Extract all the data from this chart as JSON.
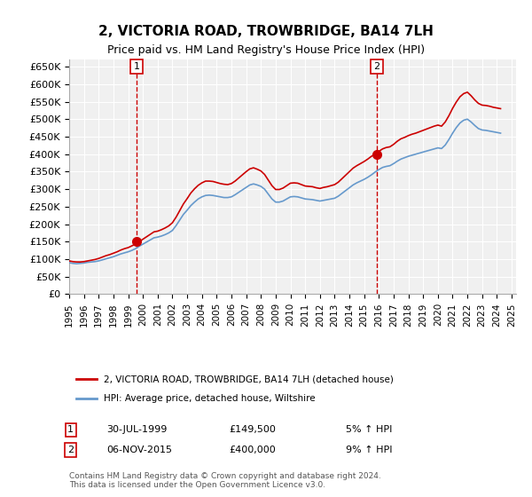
{
  "title": "2, VICTORIA ROAD, TROWBRIDGE, BA14 7LH",
  "subtitle": "Price paid vs. HM Land Registry's House Price Index (HPI)",
  "title_fontsize": 11,
  "subtitle_fontsize": 9,
  "ylabel_ticks": [
    "£0",
    "£50K",
    "£100K",
    "£150K",
    "£200K",
    "£250K",
    "£300K",
    "£350K",
    "£400K",
    "£450K",
    "£500K",
    "£550K",
    "£600K",
    "£650K"
  ],
  "ytick_vals": [
    0,
    50000,
    100000,
    150000,
    200000,
    250000,
    300000,
    350000,
    400000,
    450000,
    500000,
    550000,
    600000,
    650000
  ],
  "ylim": [
    0,
    670000
  ],
  "xlabel_ticks": [
    "1995",
    "1996",
    "1997",
    "1998",
    "1999",
    "2000",
    "2001",
    "2002",
    "2003",
    "2004",
    "2005",
    "2006",
    "2007",
    "2008",
    "2009",
    "2010",
    "2011",
    "2012",
    "2013",
    "2014",
    "2015",
    "2016",
    "2017",
    "2018",
    "2019",
    "2020",
    "2021",
    "2022",
    "2023",
    "2024",
    "2025"
  ],
  "background_color": "#ffffff",
  "plot_bg_color": "#f0f0f0",
  "grid_color": "#ffffff",
  "red_line_color": "#cc0000",
  "blue_line_color": "#6699cc",
  "vline_color": "#cc0000",
  "sale1_date": 1999.58,
  "sale1_price": 149500,
  "sale2_date": 2015.85,
  "sale2_price": 400000,
  "legend_label_red": "2, VICTORIA ROAD, TROWBRIDGE, BA14 7LH (detached house)",
  "legend_label_blue": "HPI: Average price, detached house, Wiltshire",
  "annotation1": "1",
  "annotation2": "2",
  "note1_date": "30-JUL-1999",
  "note1_price": "£149,500",
  "note1_hpi": "5% ↑ HPI",
  "note2_date": "06-NOV-2015",
  "note2_price": "£400,000",
  "note2_hpi": "9% ↑ HPI",
  "footer": "Contains HM Land Registry data © Crown copyright and database right 2024.\nThis data is licensed under the Open Government Licence v3.0.",
  "hpi_data": {
    "years": [
      1995.0,
      1995.25,
      1995.5,
      1995.75,
      1996.0,
      1996.25,
      1996.5,
      1996.75,
      1997.0,
      1997.25,
      1997.5,
      1997.75,
      1998.0,
      1998.25,
      1998.5,
      1998.75,
      1999.0,
      1999.25,
      1999.5,
      1999.75,
      2000.0,
      2000.25,
      2000.5,
      2000.75,
      2001.0,
      2001.25,
      2001.5,
      2001.75,
      2002.0,
      2002.25,
      2002.5,
      2002.75,
      2003.0,
      2003.25,
      2003.5,
      2003.75,
      2004.0,
      2004.25,
      2004.5,
      2004.75,
      2005.0,
      2005.25,
      2005.5,
      2005.75,
      2006.0,
      2006.25,
      2006.5,
      2006.75,
      2007.0,
      2007.25,
      2007.5,
      2007.75,
      2008.0,
      2008.25,
      2008.5,
      2008.75,
      2009.0,
      2009.25,
      2009.5,
      2009.75,
      2010.0,
      2010.25,
      2010.5,
      2010.75,
      2011.0,
      2011.25,
      2011.5,
      2011.75,
      2012.0,
      2012.25,
      2012.5,
      2012.75,
      2013.0,
      2013.25,
      2013.5,
      2013.75,
      2014.0,
      2014.25,
      2014.5,
      2014.75,
      2015.0,
      2015.25,
      2015.5,
      2015.75,
      2016.0,
      2016.25,
      2016.5,
      2016.75,
      2017.0,
      2017.25,
      2017.5,
      2017.75,
      2018.0,
      2018.25,
      2018.5,
      2018.75,
      2019.0,
      2019.25,
      2019.5,
      2019.75,
      2020.0,
      2020.25,
      2020.5,
      2020.75,
      2021.0,
      2021.25,
      2021.5,
      2021.75,
      2022.0,
      2022.25,
      2022.5,
      2022.75,
      2023.0,
      2023.25,
      2023.5,
      2023.75,
      2024.0,
      2024.25
    ],
    "hpi_values": [
      90000,
      88000,
      87000,
      88000,
      89000,
      91000,
      92000,
      93000,
      95000,
      98000,
      101000,
      104000,
      107000,
      111000,
      115000,
      118000,
      121000,
      125000,
      130000,
      137000,
      143000,
      149000,
      155000,
      161000,
      163000,
      166000,
      170000,
      175000,
      182000,
      196000,
      212000,
      228000,
      240000,
      253000,
      263000,
      272000,
      278000,
      282000,
      283000,
      282000,
      280000,
      278000,
      276000,
      276000,
      278000,
      284000,
      291000,
      298000,
      305000,
      312000,
      315000,
      312000,
      308000,
      300000,
      286000,
      272000,
      263000,
      263000,
      266000,
      272000,
      278000,
      279000,
      278000,
      275000,
      272000,
      271000,
      270000,
      268000,
      266000,
      268000,
      270000,
      272000,
      274000,
      280000,
      288000,
      296000,
      304000,
      312000,
      318000,
      323000,
      328000,
      334000,
      341000,
      349000,
      356000,
      362000,
      365000,
      367000,
      373000,
      380000,
      386000,
      390000,
      394000,
      397000,
      400000,
      403000,
      406000,
      409000,
      412000,
      415000,
      418000,
      416000,
      426000,
      442000,
      460000,
      476000,
      489000,
      497000,
      500000,
      492000,
      482000,
      473000,
      469000,
      468000,
      466000,
      464000,
      462000,
      460000
    ],
    "red_values": [
      95000,
      93000,
      92000,
      92000,
      93000,
      95000,
      97000,
      99000,
      102000,
      106000,
      110000,
      113000,
      117000,
      121000,
      126000,
      130000,
      133000,
      138000,
      143000,
      149500,
      157000,
      164000,
      171000,
      178000,
      180000,
      184000,
      189000,
      195000,
      204000,
      220000,
      239000,
      258000,
      273000,
      289000,
      301000,
      311000,
      318000,
      323000,
      323000,
      322000,
      319000,
      316000,
      314000,
      313000,
      316000,
      323000,
      332000,
      341000,
      350000,
      358000,
      361000,
      357000,
      352000,
      342000,
      326000,
      310000,
      299000,
      299000,
      303000,
      310000,
      317000,
      318000,
      317000,
      313000,
      309000,
      308000,
      307000,
      304000,
      302000,
      305000,
      307000,
      310000,
      313000,
      320000,
      330000,
      340000,
      350000,
      360000,
      367000,
      373000,
      379000,
      386000,
      394000,
      400000,
      408000,
      415000,
      419000,
      421000,
      428000,
      437000,
      444000,
      448000,
      453000,
      457000,
      460000,
      464000,
      468000,
      472000,
      476000,
      480000,
      483000,
      480000,
      492000,
      510000,
      531000,
      549000,
      564000,
      573000,
      577000,
      567000,
      555000,
      545000,
      540000,
      539000,
      537000,
      534000,
      532000,
      530000
    ]
  }
}
